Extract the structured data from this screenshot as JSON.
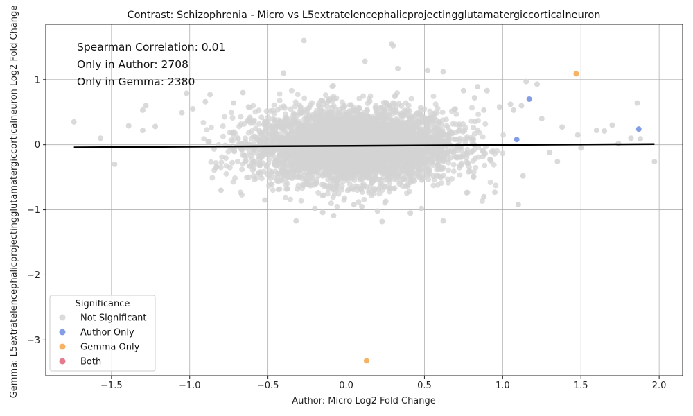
{
  "chart_data": {
    "type": "scatter",
    "title": "Contrast: Schizophrenia - Micro vs L5extratelencephalicprojectingglutamatergiccorticalneuron",
    "xlabel": "Author: Micro Log2 Fold Change",
    "ylabel": "Gemma: L5extratelencephalicprojectingglutamatergiccorticalneuron Log2 Fold Change",
    "xlim": [
      -1.92,
      2.15
    ],
    "ylim": [
      -3.55,
      1.85
    ],
    "xticks": [
      -1.5,
      -1.0,
      -0.5,
      0.0,
      0.5,
      1.0,
      1.5,
      2.0
    ],
    "xtick_labels": [
      "−1.5",
      "−1.0",
      "−0.5",
      "0.0",
      "0.5",
      "1.0",
      "1.5",
      "2.0"
    ],
    "yticks": [
      -3,
      -2,
      -1,
      0,
      1
    ],
    "ytick_labels": [
      "−3",
      "−2",
      "−1",
      "0",
      "1"
    ],
    "grid": true,
    "legend_placement": "lower-left",
    "legend_title": "Significance",
    "annotations": [
      "Spearman Correlation: 0.01",
      "Only in Author: 2708",
      "Only in Gemma: 2380"
    ],
    "series": [
      {
        "name": "Not Significant",
        "color": "#d3d3d3",
        "cloud": {
          "x_center": 0.05,
          "y_center": -0.02,
          "x_spread": 0.32,
          "y_spread": 0.28
        },
        "points": [
          [
            -1.74,
            0.35
          ],
          [
            -1.57,
            0.1
          ],
          [
            -1.48,
            -0.3
          ],
          [
            -1.39,
            0.29
          ],
          [
            -1.3,
            0.53
          ],
          [
            -1.28,
            0.6
          ],
          [
            -1.3,
            0.22
          ],
          [
            -1.22,
            0.28
          ],
          [
            -1.05,
            0.49
          ],
          [
            -1.02,
            0.79
          ],
          [
            -0.98,
            0.55
          ],
          [
            -0.9,
            0.66
          ],
          [
            -0.87,
            0.77
          ],
          [
            -0.8,
            -0.7
          ],
          [
            -0.72,
            0.64
          ],
          [
            -0.66,
            0.8
          ],
          [
            -0.52,
            -0.85
          ],
          [
            -0.4,
            1.1
          ],
          [
            -0.32,
            -1.17
          ],
          [
            -0.27,
            1.6
          ],
          [
            -0.2,
            -0.98
          ],
          [
            -0.15,
            -1.04
          ],
          [
            -0.08,
            -1.09
          ],
          [
            0.05,
            -0.92
          ],
          [
            0.1,
            -0.95
          ],
          [
            0.12,
            1.28
          ],
          [
            0.2,
            -1.02
          ],
          [
            0.23,
            -1.18
          ],
          [
            0.29,
            1.55
          ],
          [
            0.3,
            1.52
          ],
          [
            0.33,
            1.17
          ],
          [
            0.41,
            -1.05
          ],
          [
            0.48,
            -0.98
          ],
          [
            0.52,
            1.14
          ],
          [
            0.62,
            1.12
          ],
          [
            0.62,
            -1.17
          ],
          [
            0.75,
            0.83
          ],
          [
            0.82,
            0.72
          ],
          [
            0.84,
            0.89
          ],
          [
            0.88,
            0.53
          ],
          [
            0.88,
            -0.8
          ],
          [
            0.9,
            0.83
          ],
          [
            0.95,
            -0.73
          ],
          [
            0.98,
            0.58
          ],
          [
            1.05,
            0.62
          ],
          [
            1.07,
            0.53
          ],
          [
            1.1,
            -0.92
          ],
          [
            1.12,
            0.6
          ],
          [
            1.13,
            -0.48
          ],
          [
            1.15,
            0.97
          ],
          [
            1.22,
            0.93
          ],
          [
            1.25,
            0.4
          ],
          [
            1.3,
            -0.12
          ],
          [
            1.35,
            -0.26
          ],
          [
            1.38,
            0.27
          ],
          [
            1.48,
            0.15
          ],
          [
            1.5,
            -0.05
          ],
          [
            1.6,
            0.22
          ],
          [
            1.65,
            0.21
          ],
          [
            1.7,
            0.3
          ],
          [
            1.74,
            0.02
          ],
          [
            1.82,
            0.1
          ],
          [
            1.86,
            0.64
          ],
          [
            1.88,
            0.09
          ],
          [
            1.97,
            -0.26
          ]
        ]
      },
      {
        "name": "Author Only",
        "color": "#6f8de0",
        "points": [
          [
            1.17,
            0.7
          ],
          [
            1.09,
            0.08
          ],
          [
            1.87,
            0.24
          ]
        ]
      },
      {
        "name": "Gemma Only",
        "color": "#f5a54a",
        "points": [
          [
            1.47,
            1.09
          ],
          [
            0.13,
            -3.32
          ]
        ]
      },
      {
        "name": "Both",
        "color": "#e0647a",
        "points": []
      }
    ],
    "regression_line": {
      "x": [
        -1.74,
        1.97
      ],
      "y": [
        -0.04,
        0.01
      ],
      "color": "#000000"
    }
  }
}
